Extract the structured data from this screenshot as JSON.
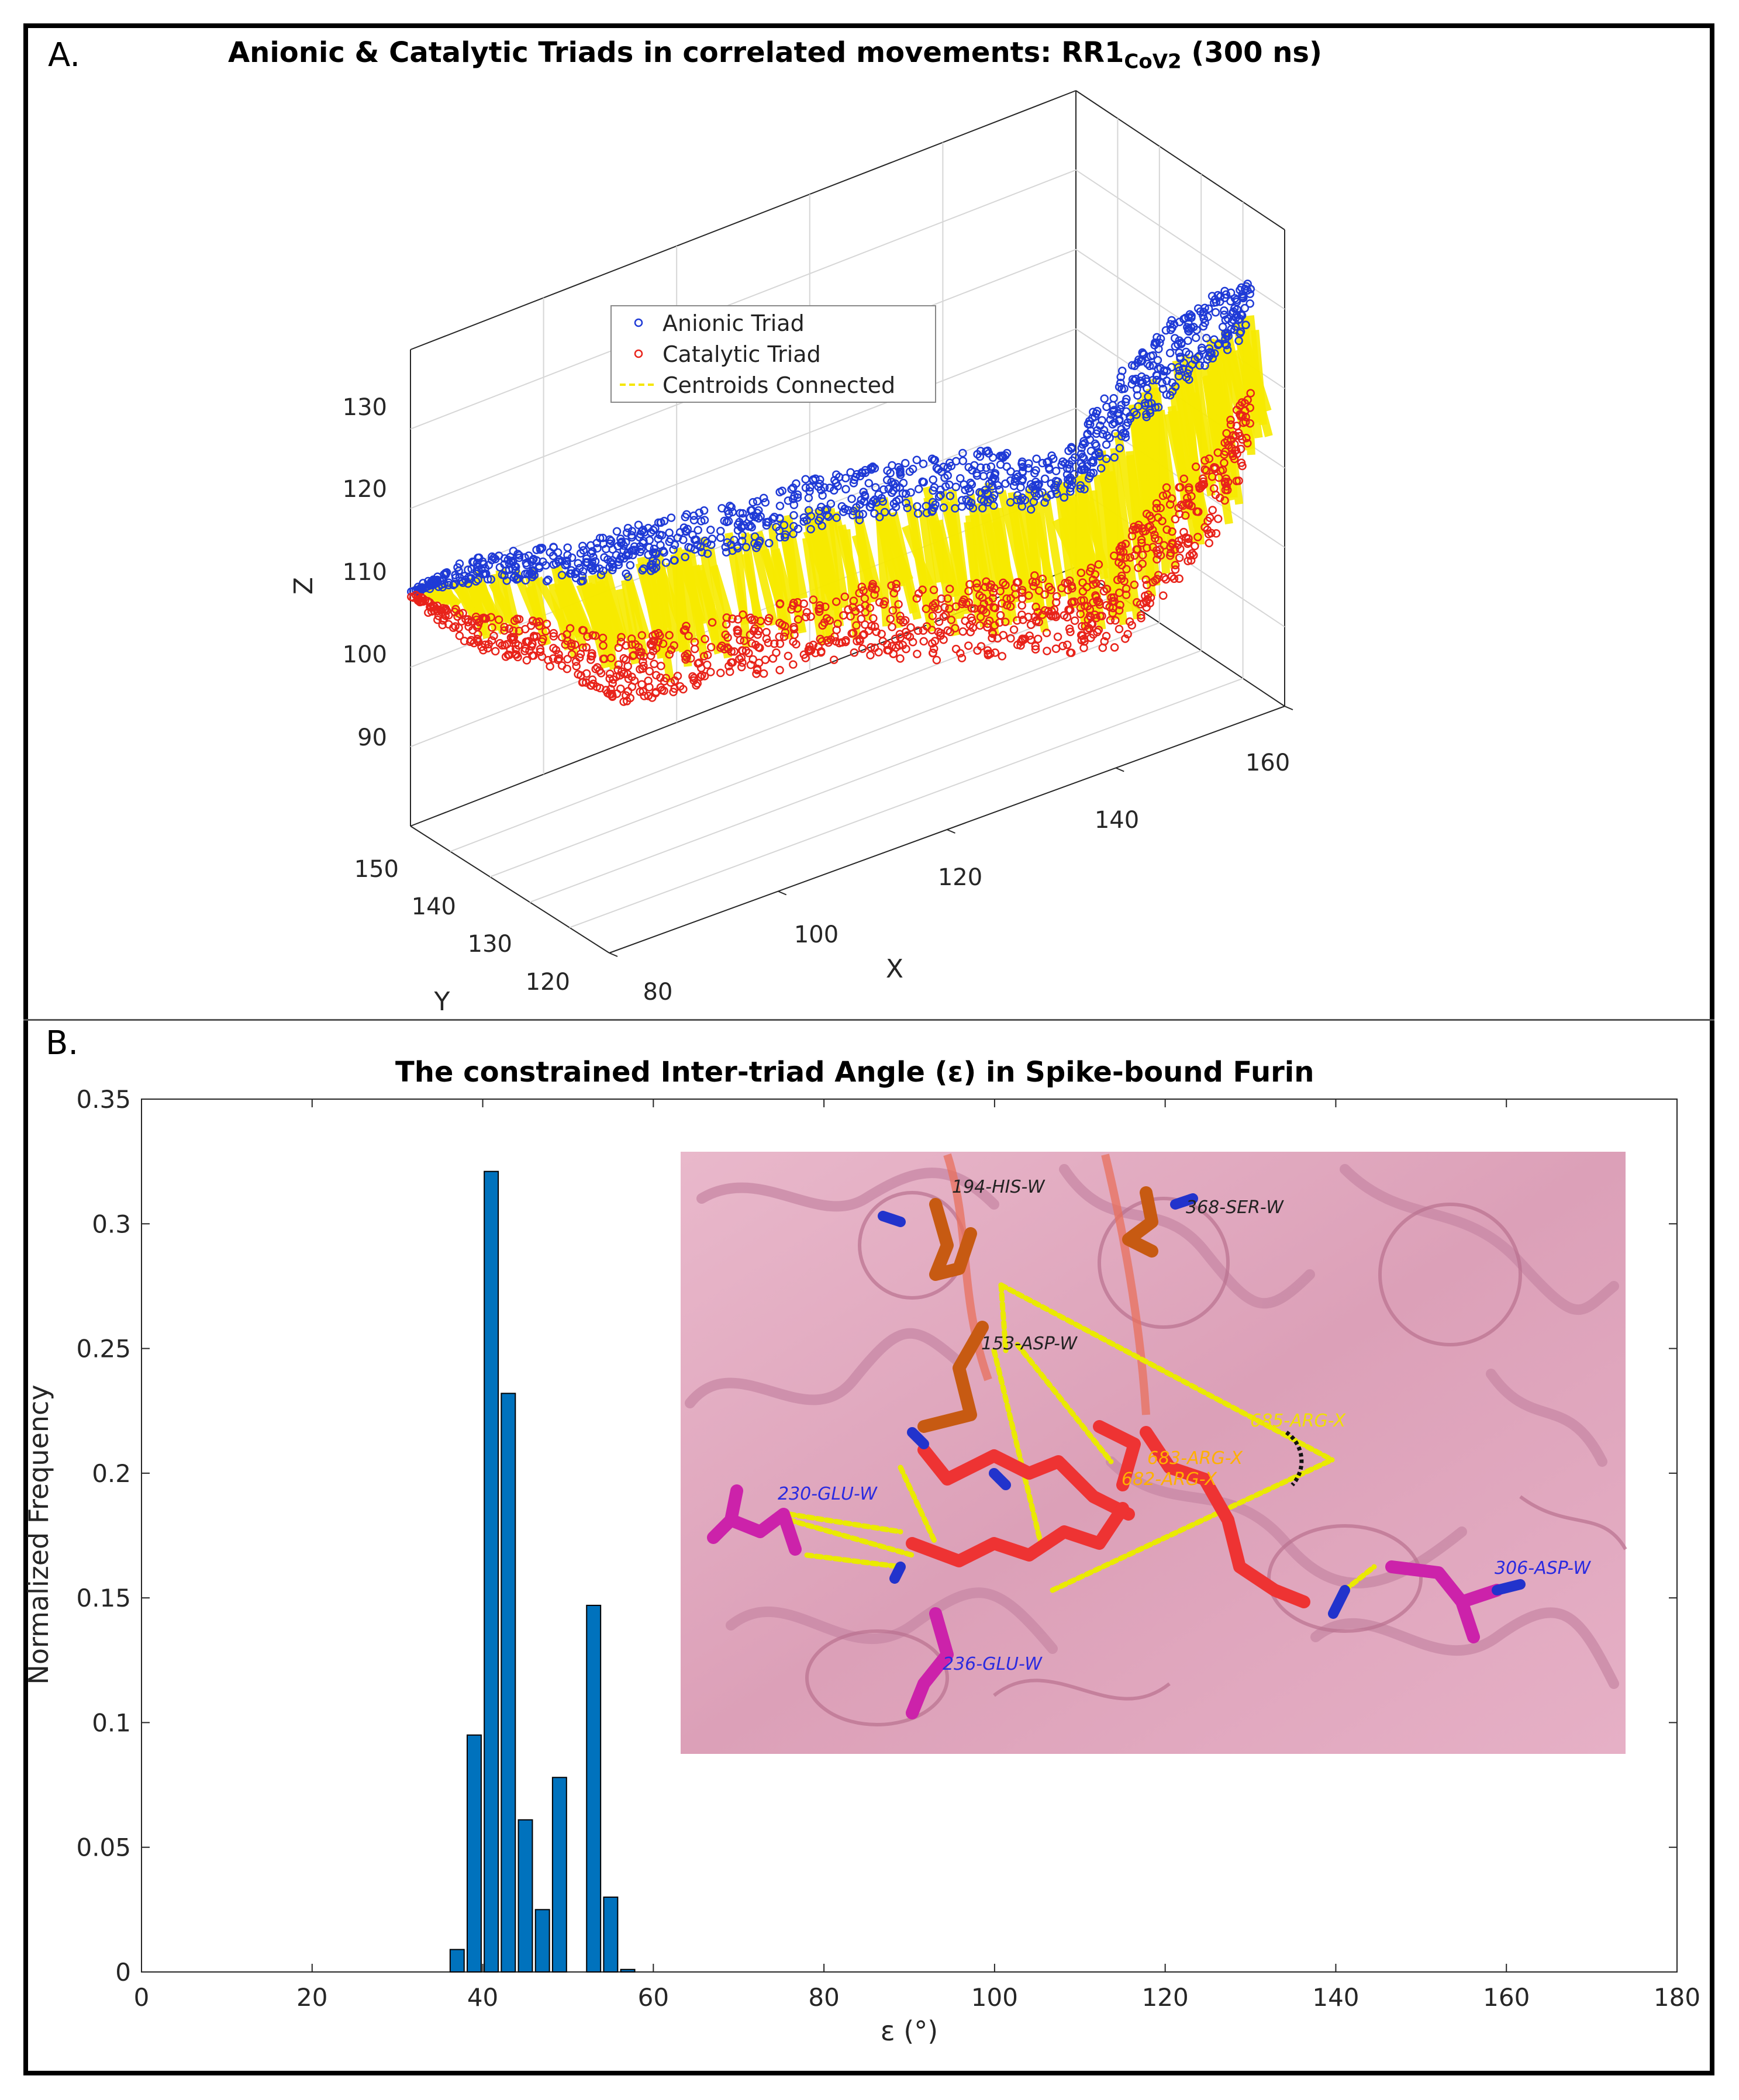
{
  "panel_a": {
    "letter": "A.",
    "title_main": "Anionic & Catalytic Triads in correlated movements: RR1",
    "title_sub": "CoV2",
    "title_tail": "(300 ns)",
    "legend": [
      {
        "label": "Anionic Triad",
        "color": "#1f3ad6",
        "marker": "circle"
      },
      {
        "label": "Catalytic Triad",
        "color": "#e8231a",
        "marker": "circle"
      },
      {
        "label": "Centroids Connected",
        "color": "#f5e600",
        "marker": "dashed-line"
      }
    ]
  },
  "panel_b": {
    "letter": "B.",
    "title": "The constrained Inter-triad Angle (ε) in Spike-bound Furin",
    "inset": {
      "labels": [
        "194-HIS-W",
        "368-SER-W",
        "153-ASP-W",
        "685-ARG-X",
        "683-ARG-X",
        "682-ARG-X",
        "230-GLU-W",
        "236-GLU-W",
        "306-ASP-W"
      ]
    }
  },
  "chart_data": [
    {
      "type": "scatter3d",
      "series": [
        {
          "name": "Anionic Triad",
          "color": "#1f3ad6"
        },
        {
          "name": "Catalytic Triad",
          "color": "#e8231a"
        },
        {
          "name": "Centroids Connected",
          "color": "#f5e600"
        }
      ],
      "xlabel": "X",
      "ylabel": "Y",
      "zlabel": "Z",
      "xticks": [
        "80",
        "100",
        "120",
        "140",
        "160"
      ],
      "yticks": [
        "120",
        "130",
        "140",
        "150"
      ],
      "zticks": [
        "90",
        "100",
        "110",
        "120",
        "130"
      ],
      "xlim": [
        75,
        165
      ],
      "ylim": [
        115,
        155
      ],
      "zlim": [
        82,
        142
      ],
      "grid": true,
      "legend_position": "upper-center"
    },
    {
      "type": "bar",
      "x": [
        37,
        39,
        41,
        43,
        45,
        47,
        49,
        51,
        53,
        55,
        57
      ],
      "values": [
        0.009,
        0.095,
        0.321,
        0.232,
        0.061,
        0.025,
        0.078,
        0.0,
        0.147,
        0.03,
        0.001
      ],
      "color": "#0072bd",
      "xlabel": "ε (°)",
      "ylabel": "Normalized Frequency",
      "xlim": [
        0,
        180
      ],
      "ylim": [
        0,
        0.35
      ],
      "xticks": [
        "0",
        "20",
        "40",
        "60",
        "80",
        "100",
        "120",
        "140",
        "160",
        "180"
      ],
      "yticks": [
        "0",
        "0.05",
        "0.1",
        "0.15",
        "0.2",
        "0.25",
        "0.3",
        "0.35"
      ]
    }
  ]
}
